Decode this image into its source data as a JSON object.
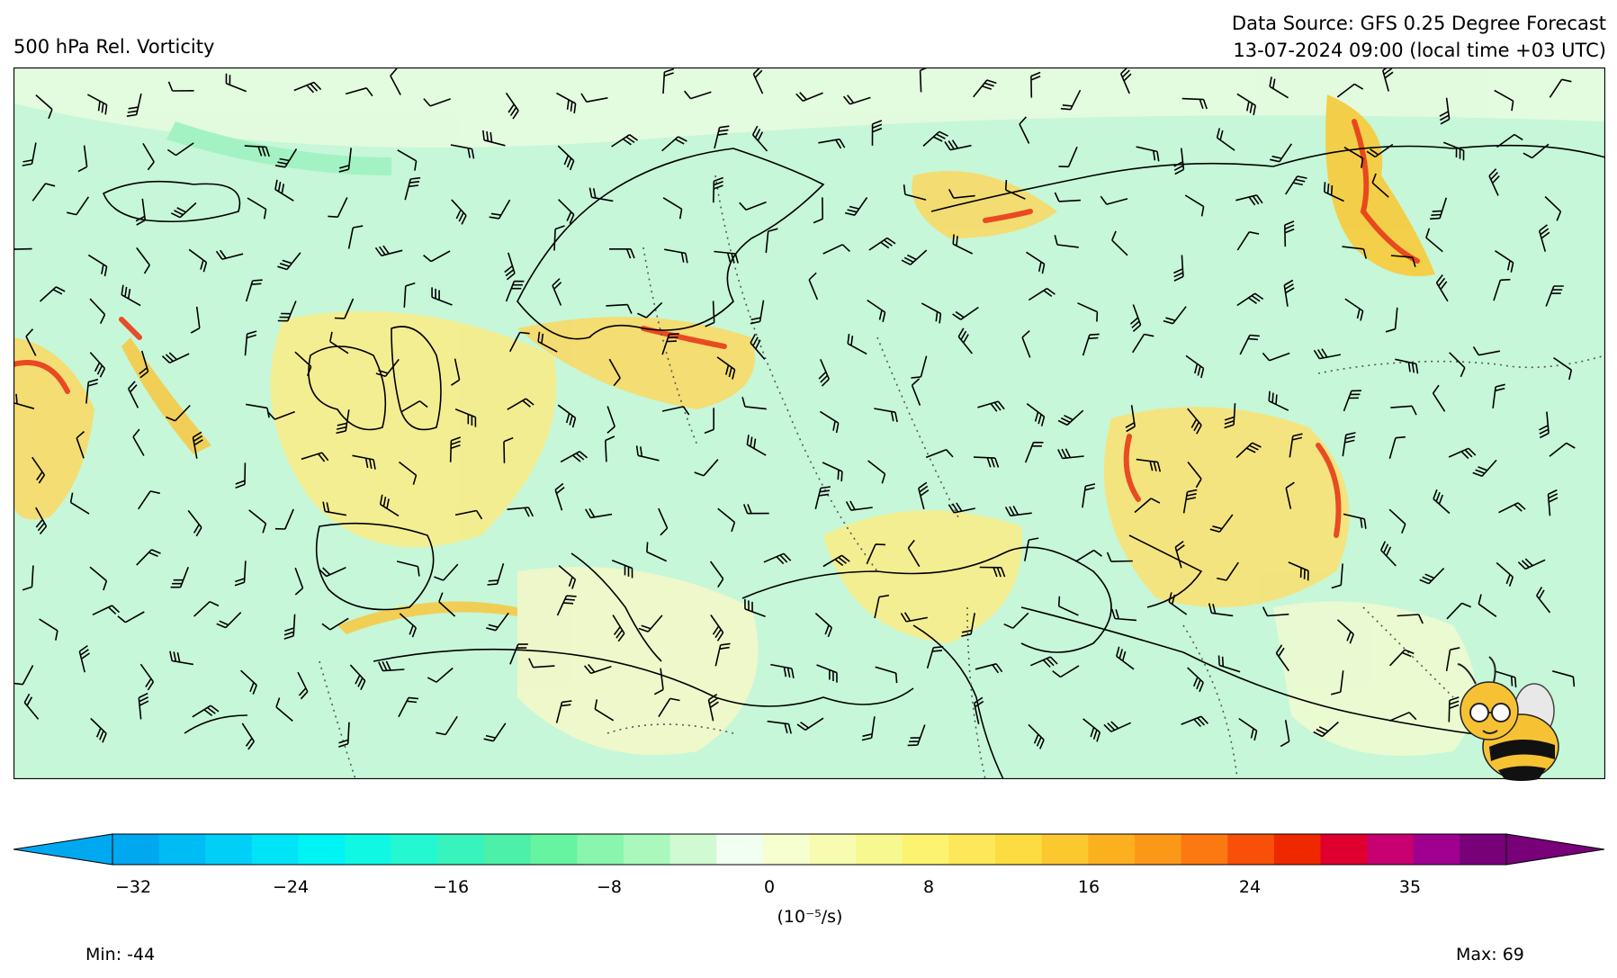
{
  "header": {
    "title": "500 hPa Rel. Vorticity",
    "source_line": "Data Source: GFS 0.25 Degree Forecast",
    "time_line": "13-07-2024 09:00 (local time +03 UTC)"
  },
  "colorbar": {
    "tick_labels": [
      "−32",
      "−24",
      "−16",
      "−8",
      "0",
      "8",
      "16",
      "24",
      "35"
    ],
    "unit_label": "(10⁻⁵/s)",
    "colors": [
      "#00a8f0",
      "#00bcf4",
      "#00d0f8",
      "#00e4f8",
      "#00f4f4",
      "#10f8e4",
      "#24f8d0",
      "#38f4bc",
      "#4cf0a8",
      "#66f4a0",
      "#88f6ac",
      "#aaf8bc",
      "#cffad2",
      "#f0fff0",
      "#f6ffd0",
      "#f8fcb0",
      "#f8f890",
      "#fcf470",
      "#fce858",
      "#fcdc40",
      "#fcc830",
      "#fcb020",
      "#fc9818",
      "#fc7810",
      "#f85008",
      "#f02800",
      "#e00030",
      "#c80070",
      "#a00090",
      "#780078"
    ],
    "min_arrow": "#00a8f0",
    "max_arrow": "#780078"
  },
  "stats": {
    "min_label": "Min: -44",
    "max_label": "Max: 69"
  },
  "map": {
    "land_fill": "#bff5d3",
    "positive_vorticity": "#fbe77a",
    "strong_vorticity": "#e84020",
    "outline_color": "#000000"
  },
  "logo": {
    "icon": "bee-mascot-icon"
  }
}
